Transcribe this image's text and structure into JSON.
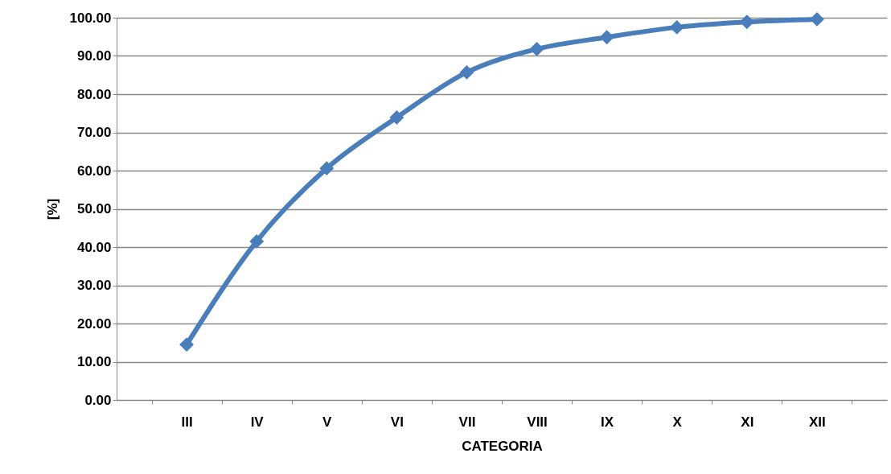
{
  "chart_data": {
    "type": "line",
    "xlabel": "CATEGORIA",
    "ylabel": "[%]",
    "categories": [
      "III",
      "IV",
      "V",
      "VI",
      "VII",
      "VIII",
      "IX",
      "X",
      "XI",
      "XII"
    ],
    "series": [
      {
        "color": "#4a7ebb",
        "values": [
          14.5,
          41.5,
          60.6,
          73.9,
          85.7,
          91.8,
          94.9,
          97.5,
          98.9,
          99.6
        ]
      }
    ],
    "ylim": [
      0,
      100
    ],
    "yticks": [
      {
        "value": 0,
        "label": "0.00"
      },
      {
        "value": 10,
        "label": "10.00"
      },
      {
        "value": 20,
        "label": "20.00"
      },
      {
        "value": 30,
        "label": "30.00"
      },
      {
        "value": 40,
        "label": "40.00"
      },
      {
        "value": 50,
        "label": "50.00"
      },
      {
        "value": 60,
        "label": "60.00"
      },
      {
        "value": 70,
        "label": "70.00"
      },
      {
        "value": 80,
        "label": "80.00"
      },
      {
        "value": 90,
        "label": "90.00"
      },
      {
        "value": 100,
        "label": "100.00"
      }
    ],
    "grid": "y",
    "marker": "diamond",
    "line_style": "solid"
  }
}
